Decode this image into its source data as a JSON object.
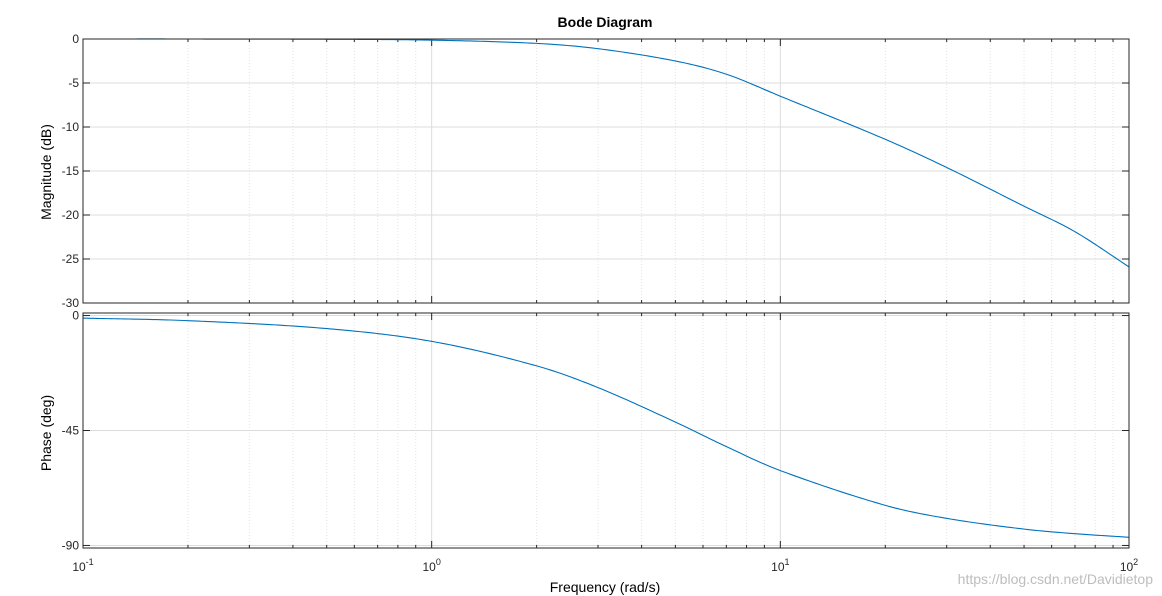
{
  "chart_data": {
    "type": "line",
    "title": "Bode Diagram",
    "xlabel": "Frequency  (rad/s)",
    "x_scale": "log",
    "xlim": [
      0.1,
      100
    ],
    "x_ticks": [
      {
        "value": 0.1,
        "base": "10",
        "exp": "-1"
      },
      {
        "value": 1,
        "base": "10",
        "exp": "0"
      },
      {
        "value": 10,
        "base": "10",
        "exp": "1"
      },
      {
        "value": 100,
        "base": "10",
        "exp": "2"
      }
    ],
    "grid": true,
    "line_color": "#0072bd",
    "panels": [
      {
        "name": "magnitude",
        "ylabel": "Magnitude (dB)",
        "ylim": [
          -30,
          0
        ],
        "y_ticks": [
          0,
          -5,
          -10,
          -15,
          -20,
          -25,
          -30
        ],
        "y_tick_labels": [
          "0",
          "-5",
          "-10",
          "-15",
          "-20",
          "-25",
          "-30"
        ],
        "x": [
          0.1,
          0.2,
          0.5,
          1,
          2,
          3,
          5,
          7,
          10,
          20,
          30,
          50,
          70,
          100
        ],
        "y": [
          0,
          0,
          -0.03,
          -0.13,
          -0.5,
          -1.1,
          -2.5,
          -4.0,
          -6.5,
          -11.4,
          -14.6,
          -19.0,
          -21.9,
          -25.9
        ]
      },
      {
        "name": "phase",
        "ylabel": "Phase (deg)",
        "ylim": [
          -91,
          1
        ],
        "y_ticks": [
          0,
          -45,
          -90
        ],
        "y_tick_labels": [
          "0",
          "-45",
          "-90"
        ],
        "x": [
          0.1,
          0.2,
          0.5,
          1,
          2,
          3,
          5,
          7,
          10,
          20,
          30,
          50,
          70,
          100
        ],
        "y": [
          -1.0,
          -2.0,
          -5.1,
          -10.1,
          -19.7,
          -28.2,
          -41.7,
          -51.3,
          -60.7,
          -74.3,
          -79.4,
          -83.6,
          -85.4,
          -86.8
        ]
      }
    ]
  },
  "watermark": "https://blog.csdn.net/Davidietop"
}
